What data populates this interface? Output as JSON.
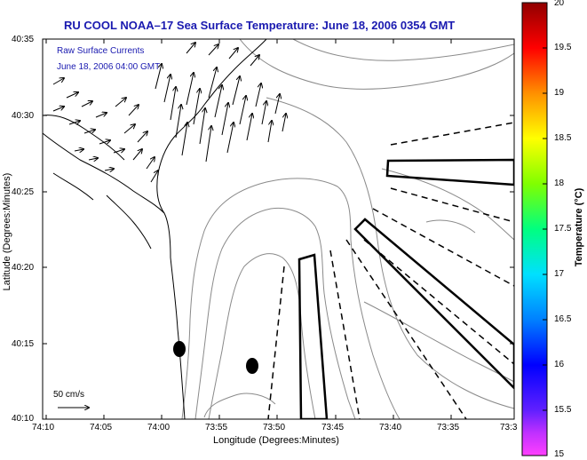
{
  "title": "RU COOL  NOAA–17  Sea Surface Temperature:  June 18, 2006 0354 GMT",
  "overlay": {
    "line1": "Raw Surface Currents",
    "line2": "June 18, 2006 04:00 GMT",
    "scale_label": "50 cm/s"
  },
  "axes": {
    "xlabel": "Longitude (Degrees:Minutes)",
    "ylabel": "Latitude (Degrees:Minutes)",
    "xticks": [
      "74:10",
      "74:05",
      "74:00",
      "73:55",
      "73:50",
      "73:45",
      "73:40",
      "73:35",
      "73:3"
    ],
    "yticks": [
      "40:35",
      "40:30",
      "40:25",
      "40:20",
      "40:15",
      "40:10"
    ]
  },
  "colorbar": {
    "label": "Temperature (°C)",
    "ticks": [
      "20",
      "19.5",
      "19",
      "18.5",
      "18",
      "17.5",
      "17",
      "16.5",
      "16",
      "15.5",
      "15"
    ],
    "range": [
      15,
      20
    ]
  },
  "colors": {
    "title": "#1a1ab0",
    "overlay_text": "#1a1ab0",
    "land": "#ffffff",
    "contour": "#888888"
  }
}
